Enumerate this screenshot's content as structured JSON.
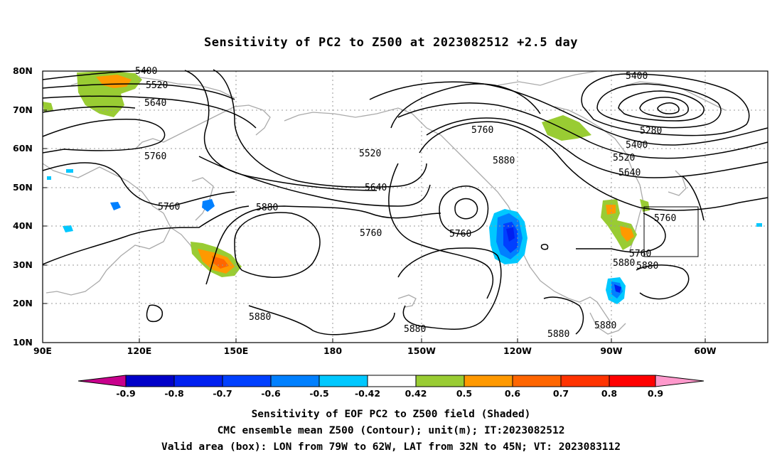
{
  "title": "Sensitivity of PC2 to Z500 at 2023082512 +2.5 day",
  "axes": {
    "lat_labels": [
      "80N",
      "70N",
      "60N",
      "50N",
      "40N",
      "30N",
      "20N",
      "10N"
    ],
    "lon_labels": [
      "90E",
      "120E",
      "150E",
      "180",
      "150W",
      "120W",
      "90W",
      "60W"
    ]
  },
  "contours": [
    {
      "label": "5400"
    },
    {
      "label": "5520"
    },
    {
      "label": "5640"
    },
    {
      "label": "5760"
    },
    {
      "label": "5760"
    },
    {
      "label": "5760"
    },
    {
      "label": "5880"
    },
    {
      "label": "5520"
    },
    {
      "label": "5640"
    },
    {
      "label": "5760"
    },
    {
      "label": "5760"
    },
    {
      "label": "5760"
    },
    {
      "label": "5880"
    },
    {
      "label": "5400"
    },
    {
      "label": "5280"
    },
    {
      "label": "5400"
    },
    {
      "label": "5520"
    },
    {
      "label": "5640"
    },
    {
      "label": "5760"
    },
    {
      "label": "5880"
    },
    {
      "label": "5880"
    },
    {
      "label": "5880"
    },
    {
      "label": "5880"
    },
    {
      "label": "5880"
    },
    {
      "label": "5880"
    }
  ],
  "colorbar": {
    "labels": [
      "-0.9",
      "-0.8",
      "-0.7",
      "-0.6",
      "-0.5",
      "-0.42",
      "0.42",
      "0.5",
      "0.6",
      "0.7",
      "0.8",
      "0.9"
    ],
    "colors": [
      "#c8008c",
      "#0000c8",
      "#0020f0",
      "#0040ff",
      "#0080ff",
      "#00c8ff",
      "#ffffff",
      "#99cc33",
      "#ff9900",
      "#ff6600",
      "#ff3300",
      "#ff0000",
      "#ff99cc"
    ]
  },
  "captions": [
    "Sensitivity of EOF PC2 to Z500 field (Shaded)",
    "CMC ensemble mean Z500 (Contour); unit(m); IT:2023082512",
    "Valid area (box): LON from 79W to 62W, LAT from 32N to 45N; VT: 2023083112"
  ]
}
